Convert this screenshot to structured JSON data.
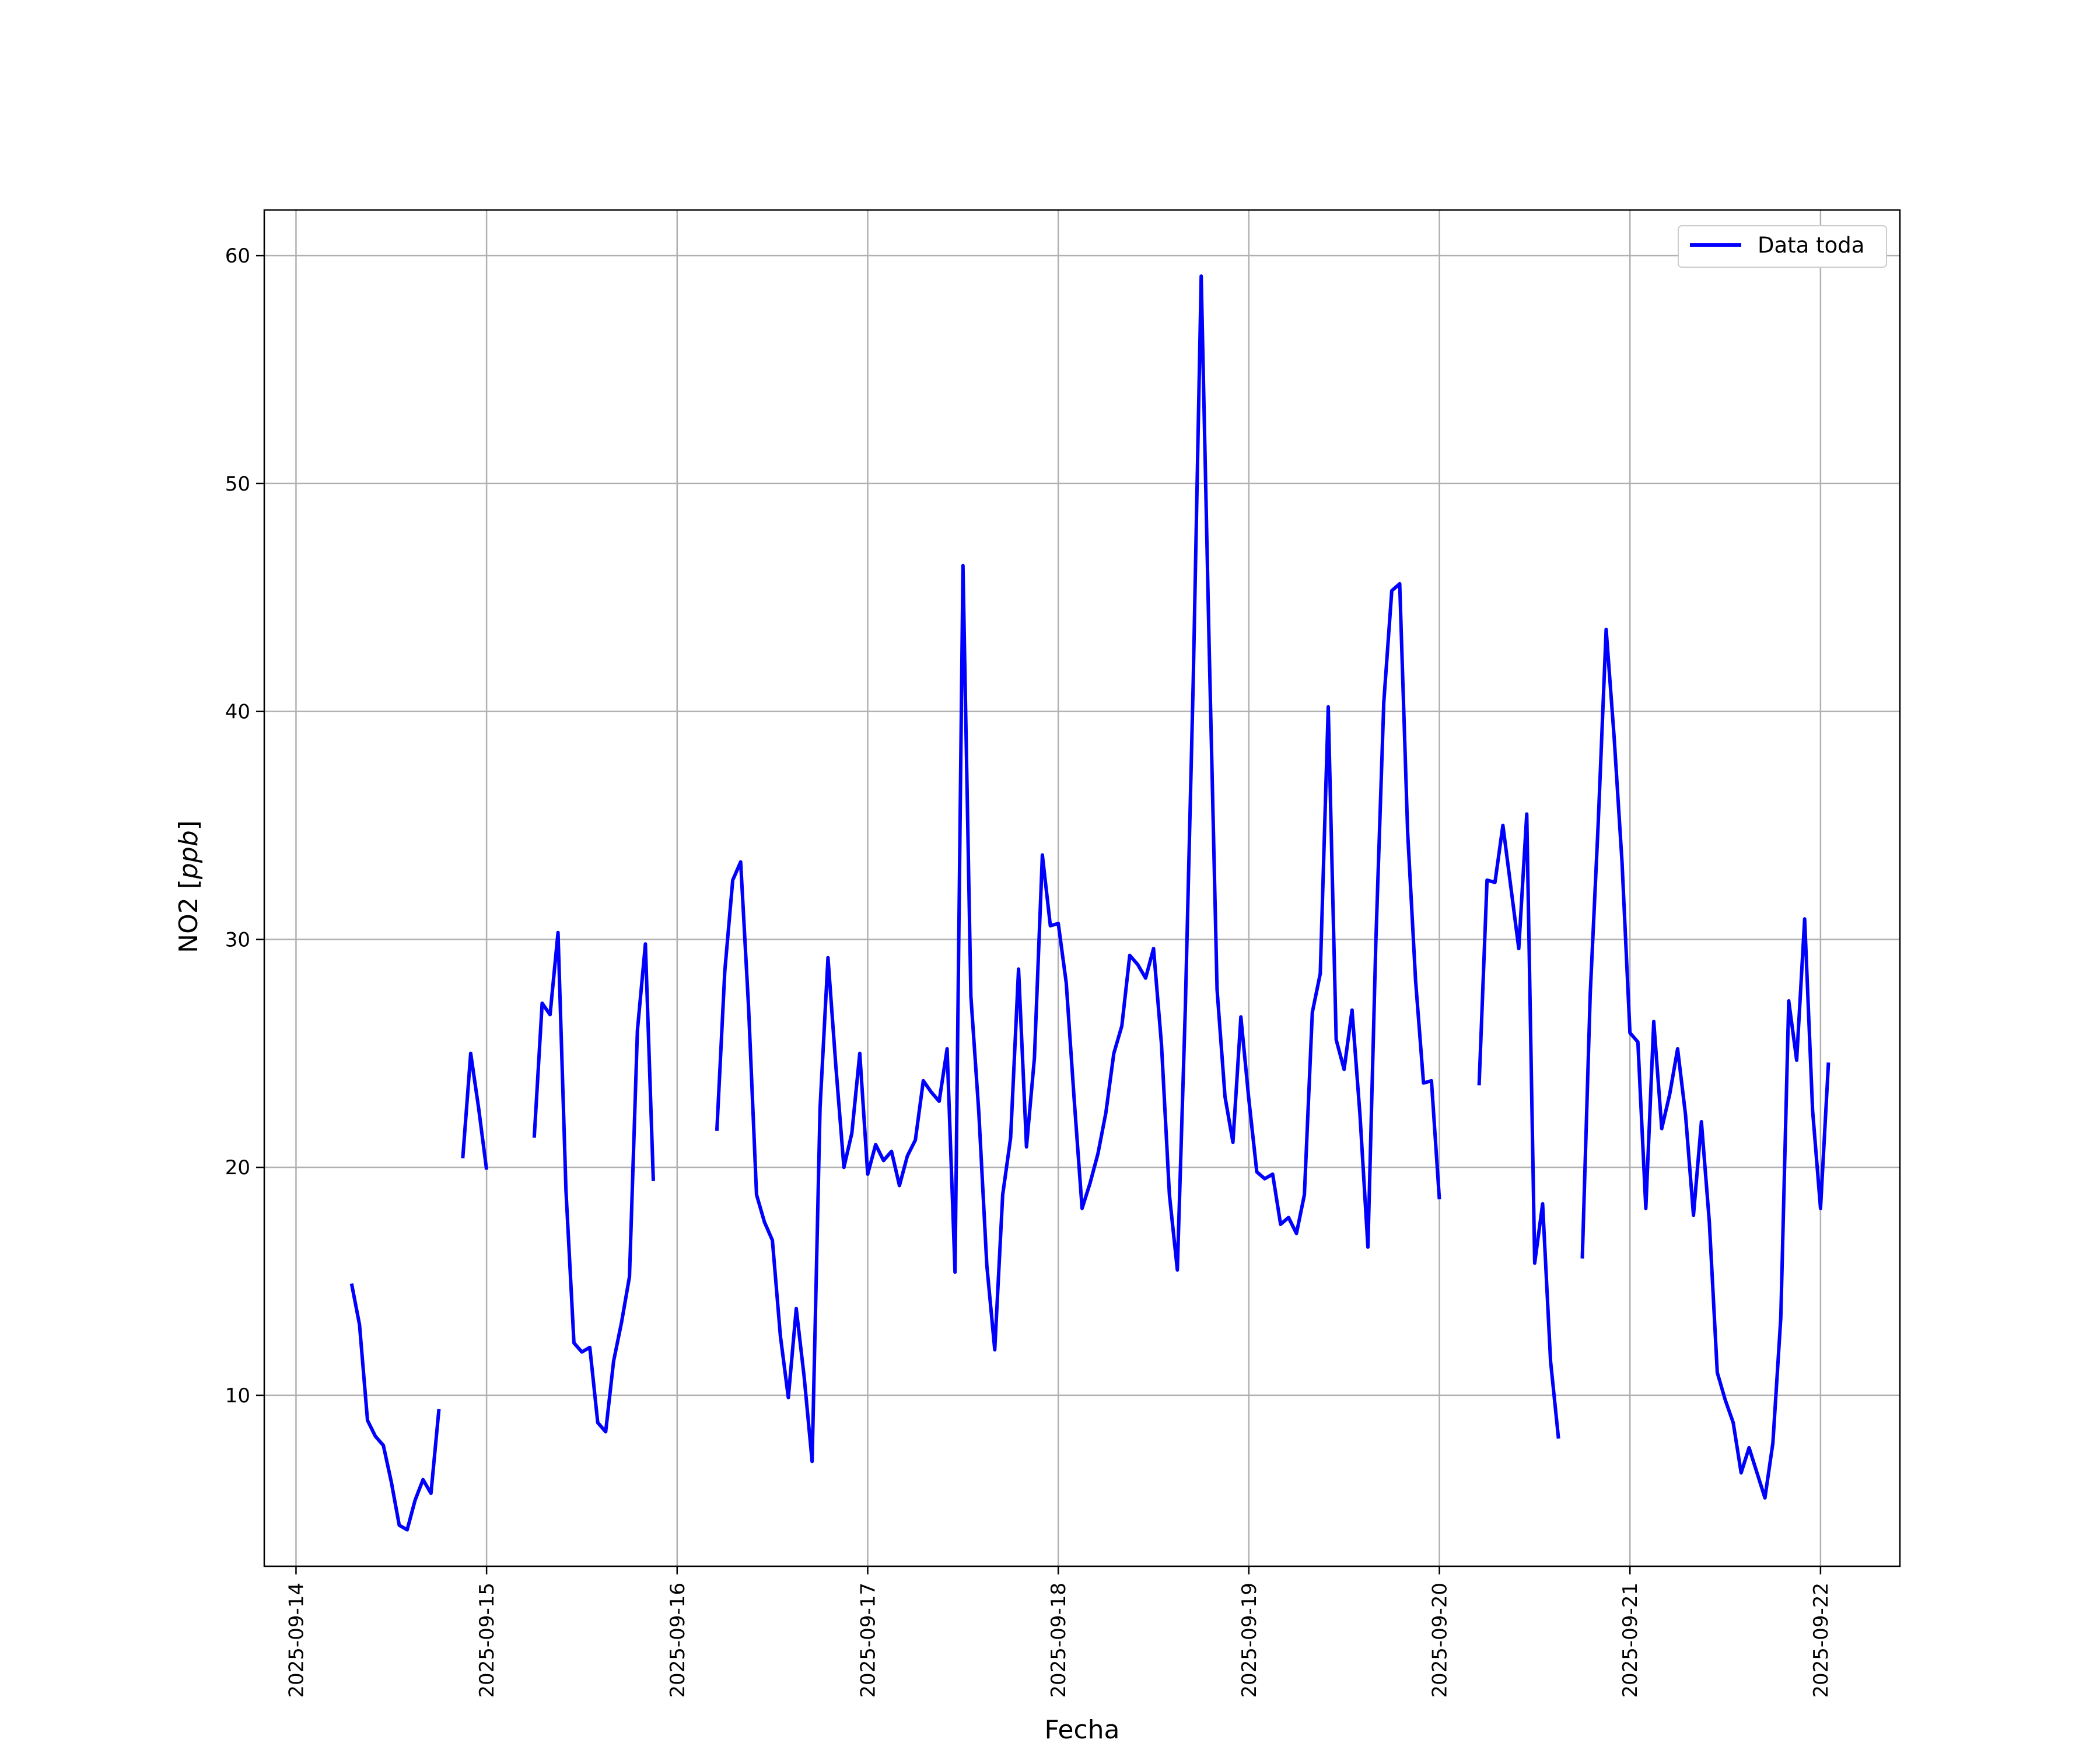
{
  "chart_data": {
    "type": "line",
    "xlabel": "Fecha",
    "ylabel_main": "NO2 [",
    "ylabel_unit": "ppb",
    "ylabel_end": "]",
    "xlim": [
      "2025-09-13 20:00",
      "2025-09-22 10:00"
    ],
    "ylim": [
      2.5,
      62
    ],
    "x_ticks": [
      "2025-09-14",
      "2025-09-15",
      "2025-09-16",
      "2025-09-17",
      "2025-09-18",
      "2025-09-19",
      "2025-09-20",
      "2025-09-21",
      "2025-09-22"
    ],
    "y_ticks": [
      10,
      20,
      30,
      40,
      50,
      60
    ],
    "grid": true,
    "legend_position": "top-right",
    "series": [
      {
        "name": "Data toda",
        "color": "#0000ff",
        "segments": [
          [
            [
              "2025-09-14 07:00",
              14.9
            ],
            [
              "2025-09-14 08:00",
              13.1
            ],
            [
              "2025-09-14 09:00",
              8.9
            ],
            [
              "2025-09-14 10:00",
              8.2
            ],
            [
              "2025-09-14 11:00",
              7.8
            ],
            [
              "2025-09-14 12:00",
              6.2
            ],
            [
              "2025-09-14 13:00",
              4.3
            ],
            [
              "2025-09-14 14:00",
              4.1
            ],
            [
              "2025-09-14 15:00",
              5.4
            ],
            [
              "2025-09-14 16:00",
              6.3
            ],
            [
              "2025-09-14 17:00",
              5.7
            ],
            [
              "2025-09-14 18:00",
              9.4
            ]
          ],
          [
            [
              "2025-09-14 21:00",
              20.4
            ],
            [
              "2025-09-14 22:00",
              25.0
            ],
            [
              "2025-09-14 23:00",
              22.6
            ],
            [
              "2025-09-15 00:00",
              19.9
            ]
          ],
          [
            [
              "2025-09-15 06:00",
              21.3
            ],
            [
              "2025-09-15 07:00",
              27.2
            ],
            [
              "2025-09-15 08:00",
              26.7
            ],
            [
              "2025-09-15 09:00",
              30.3
            ],
            [
              "2025-09-15 10:00",
              19.0
            ],
            [
              "2025-09-15 11:00",
              12.3
            ],
            [
              "2025-09-15 12:00",
              11.9
            ],
            [
              "2025-09-15 13:00",
              12.1
            ],
            [
              "2025-09-15 14:00",
              8.8
            ],
            [
              "2025-09-15 15:00",
              8.4
            ],
            [
              "2025-09-15 16:00",
              11.5
            ],
            [
              "2025-09-15 17:00",
              13.2
            ],
            [
              "2025-09-15 18:00",
              15.2
            ],
            [
              "2025-09-15 19:00",
              26.0
            ],
            [
              "2025-09-15 20:00",
              29.8
            ],
            [
              "2025-09-15 21:00",
              19.4
            ]
          ],
          [
            [
              "2025-09-16 05:00",
              21.6
            ],
            [
              "2025-09-16 06:00",
              28.6
            ],
            [
              "2025-09-16 07:00",
              32.6
            ],
            [
              "2025-09-16 08:00",
              33.4
            ],
            [
              "2025-09-16 09:00",
              27.0
            ],
            [
              "2025-09-16 10:00",
              18.8
            ],
            [
              "2025-09-16 11:00",
              17.6
            ],
            [
              "2025-09-16 12:00",
              16.8
            ],
            [
              "2025-09-16 13:00",
              12.6
            ],
            [
              "2025-09-16 14:00",
              9.9
            ],
            [
              "2025-09-16 15:00",
              13.8
            ],
            [
              "2025-09-16 16:00",
              10.8
            ],
            [
              "2025-09-16 17:00",
              7.1
            ],
            [
              "2025-09-16 18:00",
              22.6
            ],
            [
              "2025-09-16 19:00",
              29.2
            ],
            [
              "2025-09-16 20:00",
              24.4
            ],
            [
              "2025-09-16 21:00",
              20.0
            ],
            [
              "2025-09-16 22:00",
              21.5
            ],
            [
              "2025-09-16 23:00",
              25.0
            ],
            [
              "2025-09-17 00:00",
              19.7
            ],
            [
              "2025-09-17 01:00",
              21.0
            ],
            [
              "2025-09-17 02:00",
              20.3
            ],
            [
              "2025-09-17 03:00",
              20.7
            ],
            [
              "2025-09-17 04:00",
              19.2
            ],
            [
              "2025-09-17 05:00",
              20.5
            ],
            [
              "2025-09-17 06:00",
              21.2
            ],
            [
              "2025-09-17 07:00",
              23.8
            ],
            [
              "2025-09-17 08:00",
              23.3
            ],
            [
              "2025-09-17 09:00",
              22.9
            ],
            [
              "2025-09-17 10:00",
              25.2
            ],
            [
              "2025-09-17 11:00",
              15.4
            ],
            [
              "2025-09-17 12:00",
              46.4
            ],
            [
              "2025-09-17 13:00",
              27.5
            ],
            [
              "2025-09-17 14:00",
              22.4
            ],
            [
              "2025-09-17 15:00",
              15.7
            ],
            [
              "2025-09-17 16:00",
              12.0
            ],
            [
              "2025-09-17 17:00",
              18.8
            ],
            [
              "2025-09-17 18:00",
              21.3
            ],
            [
              "2025-09-17 19:00",
              28.7
            ],
            [
              "2025-09-17 20:00",
              20.9
            ],
            [
              "2025-09-17 21:00",
              24.8
            ],
            [
              "2025-09-17 22:00",
              33.7
            ],
            [
              "2025-09-17 23:00",
              30.6
            ],
            [
              "2025-09-18 00:00",
              30.7
            ],
            [
              "2025-09-18 01:00",
              28.1
            ],
            [
              "2025-09-18 02:00",
              23.0
            ],
            [
              "2025-09-18 03:00",
              18.2
            ],
            [
              "2025-09-18 04:00",
              19.3
            ],
            [
              "2025-09-18 05:00",
              20.6
            ],
            [
              "2025-09-18 06:00",
              22.4
            ],
            [
              "2025-09-18 07:00",
              25.0
            ],
            [
              "2025-09-18 08:00",
              26.2
            ],
            [
              "2025-09-18 09:00",
              29.3
            ],
            [
              "2025-09-18 10:00",
              28.9
            ],
            [
              "2025-09-18 11:00",
              28.3
            ],
            [
              "2025-09-18 12:00",
              29.6
            ],
            [
              "2025-09-18 13:00",
              25.4
            ],
            [
              "2025-09-18 14:00",
              18.8
            ],
            [
              "2025-09-18 15:00",
              15.5
            ],
            [
              "2025-09-18 16:00",
              27.0
            ],
            [
              "2025-09-18 17:00",
              41.4
            ],
            [
              "2025-09-18 18:00",
              59.1
            ],
            [
              "2025-09-18 19:00",
              42.9
            ],
            [
              "2025-09-18 20:00",
              27.8
            ],
            [
              "2025-09-18 21:00",
              23.1
            ],
            [
              "2025-09-18 22:00",
              21.1
            ],
            [
              "2025-09-18 23:00",
              26.6
            ],
            [
              "2025-09-19 00:00",
              23.0
            ],
            [
              "2025-09-19 01:00",
              19.8
            ],
            [
              "2025-09-19 02:00",
              19.5
            ],
            [
              "2025-09-19 03:00",
              19.7
            ],
            [
              "2025-09-19 04:00",
              17.5
            ],
            [
              "2025-09-19 05:00",
              17.8
            ],
            [
              "2025-09-19 06:00",
              17.1
            ],
            [
              "2025-09-19 07:00",
              18.8
            ],
            [
              "2025-09-19 08:00",
              26.8
            ],
            [
              "2025-09-19 09:00",
              28.5
            ],
            [
              "2025-09-19 10:00",
              40.2
            ],
            [
              "2025-09-19 11:00",
              25.6
            ],
            [
              "2025-09-19 12:00",
              24.3
            ],
            [
              "2025-09-19 13:00",
              26.9
            ],
            [
              "2025-09-19 14:00",
              22.3
            ],
            [
              "2025-09-19 15:00",
              16.5
            ],
            [
              "2025-09-19 16:00",
              29.9
            ],
            [
              "2025-09-19 17:00",
              40.4
            ],
            [
              "2025-09-19 18:00",
              45.3
            ],
            [
              "2025-09-19 19:00",
              45.6
            ],
            [
              "2025-09-19 20:00",
              34.7
            ],
            [
              "2025-09-19 21:00",
              28.2
            ],
            [
              "2025-09-19 22:00",
              23.7
            ],
            [
              "2025-09-19 23:00",
              23.8
            ],
            [
              "2025-09-20 00:00",
              18.6
            ]
          ],
          [
            [
              "2025-09-20 05:00",
              23.6
            ],
            [
              "2025-09-20 06:00",
              32.6
            ],
            [
              "2025-09-20 07:00",
              32.5
            ],
            [
              "2025-09-20 08:00",
              35.0
            ],
            [
              "2025-09-20 09:00",
              32.3
            ],
            [
              "2025-09-20 10:00",
              29.6
            ],
            [
              "2025-09-20 11:00",
              35.5
            ],
            [
              "2025-09-20 12:00",
              15.8
            ],
            [
              "2025-09-20 13:00",
              18.4
            ],
            [
              "2025-09-20 14:00",
              11.5
            ],
            [
              "2025-09-20 15:00",
              8.1
            ]
          ],
          [
            [
              "2025-09-20 18:00",
              16.0
            ],
            [
              "2025-09-20 19:00",
              27.6
            ],
            [
              "2025-09-20 20:00",
              35.1
            ],
            [
              "2025-09-20 21:00",
              43.6
            ],
            [
              "2025-09-20 22:00",
              38.9
            ],
            [
              "2025-09-20 23:00",
              33.4
            ],
            [
              "2025-09-21 00:00",
              25.9
            ],
            [
              "2025-09-21 01:00",
              25.5
            ],
            [
              "2025-09-21 02:00",
              18.2
            ],
            [
              "2025-09-21 03:00",
              26.4
            ],
            [
              "2025-09-21 04:00",
              21.7
            ],
            [
              "2025-09-21 05:00",
              23.2
            ],
            [
              "2025-09-21 06:00",
              25.2
            ],
            [
              "2025-09-21 07:00",
              22.3
            ],
            [
              "2025-09-21 08:00",
              17.9
            ],
            [
              "2025-09-21 09:00",
              22.0
            ],
            [
              "2025-09-21 10:00",
              17.6
            ],
            [
              "2025-09-21 11:00",
              11.0
            ],
            [
              "2025-09-21 12:00",
              9.8
            ],
            [
              "2025-09-21 13:00",
              8.8
            ],
            [
              "2025-09-21 14:00",
              6.6
            ],
            [
              "2025-09-21 15:00",
              7.7
            ],
            [
              "2025-09-21 16:00",
              6.6
            ],
            [
              "2025-09-21 17:00",
              5.5
            ],
            [
              "2025-09-21 18:00",
              7.9
            ],
            [
              "2025-09-21 19:00",
              13.4
            ],
            [
              "2025-09-21 20:00",
              27.3
            ],
            [
              "2025-09-21 21:00",
              24.7
            ],
            [
              "2025-09-21 22:00",
              30.9
            ],
            [
              "2025-09-21 23:00",
              22.5
            ],
            [
              "2025-09-22 00:00",
              18.2
            ],
            [
              "2025-09-22 01:00",
              24.6
            ]
          ]
        ]
      }
    ]
  }
}
